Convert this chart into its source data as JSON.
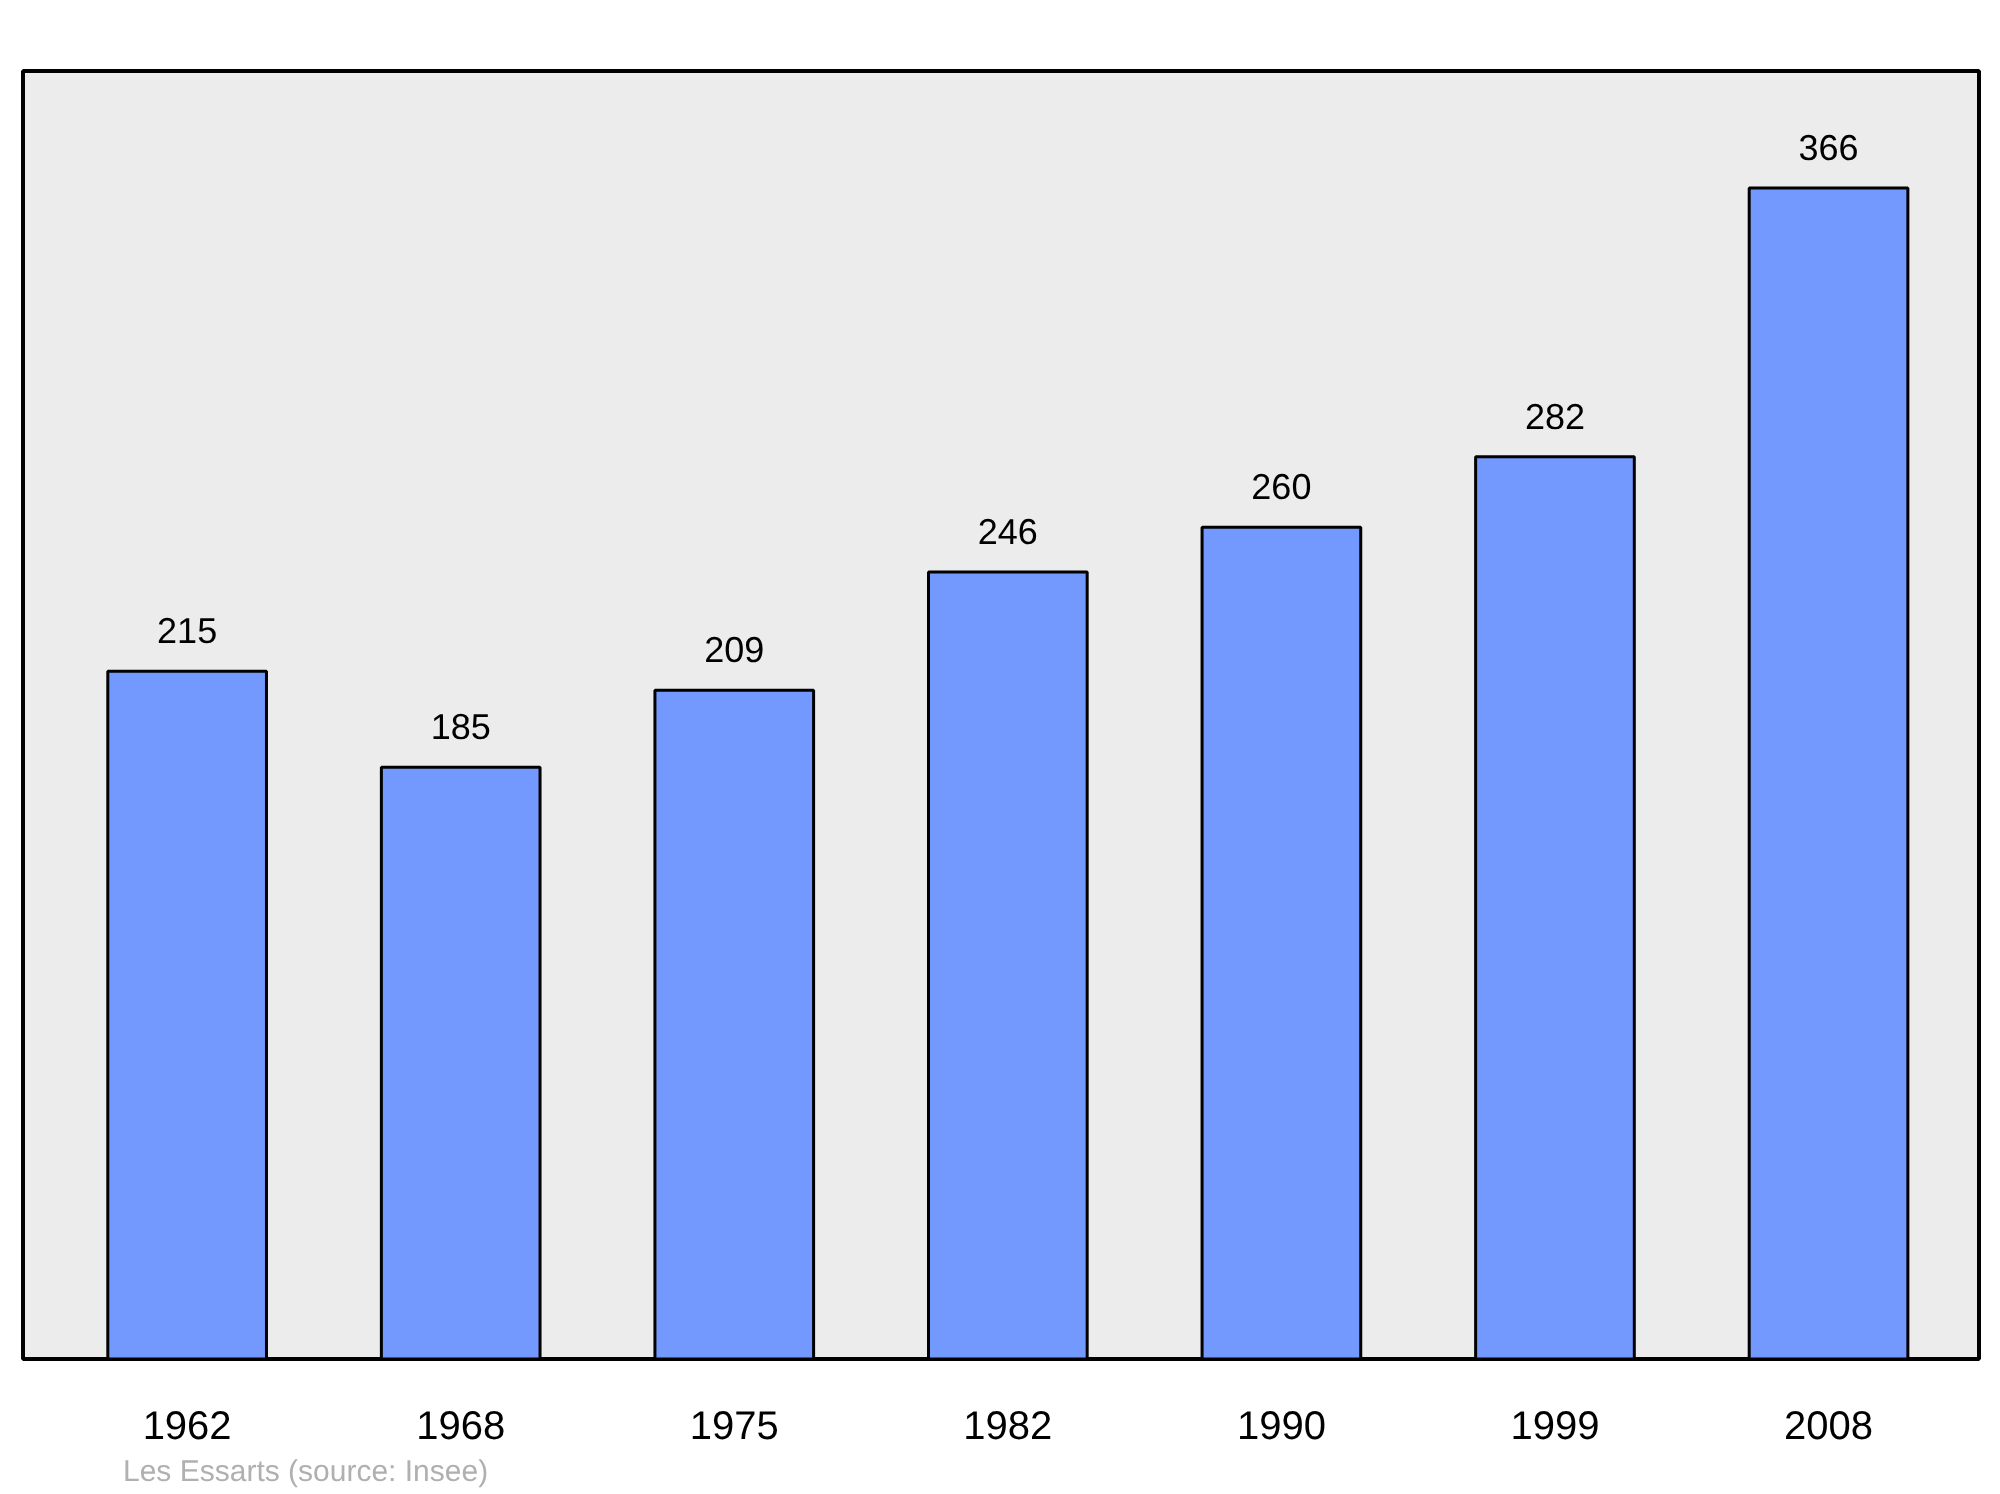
{
  "chart_data": {
    "type": "bar",
    "categories": [
      "1962",
      "1968",
      "1975",
      "1982",
      "1990",
      "1999",
      "2008"
    ],
    "values": [
      215,
      185,
      209,
      246,
      260,
      282,
      366
    ],
    "color": "#7399ff",
    "data_labels": true,
    "annotations": [
      "Les Essarts    (source: Insee)"
    ]
  }
}
